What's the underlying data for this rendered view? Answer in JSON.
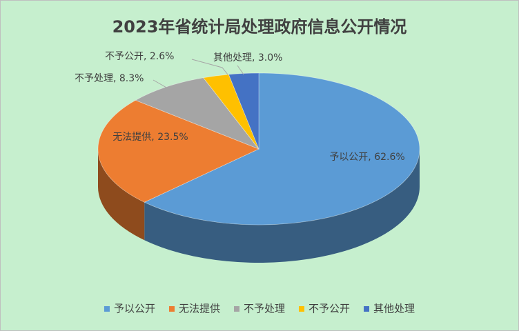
{
  "chart_data": {
    "type": "pie",
    "title": "2023年省统计局处理政府信息公开情况",
    "categories": [
      "予以公开",
      "无法提供",
      "不予处理",
      "不予公开",
      "其他处理"
    ],
    "values": [
      62.6,
      23.5,
      8.3,
      2.6,
      3.0
    ],
    "value_labels": [
      "予以公开, 62.6%",
      "无法提供, 23.5%",
      "不予处理, 8.3%",
      "不予公开, 2.6%",
      "其他处理, 3.0%"
    ],
    "colors": [
      "#5b9bd5",
      "#ed7d31",
      "#a5a5a5",
      "#ffc000",
      "#4472c4"
    ],
    "legend": "bottom"
  }
}
